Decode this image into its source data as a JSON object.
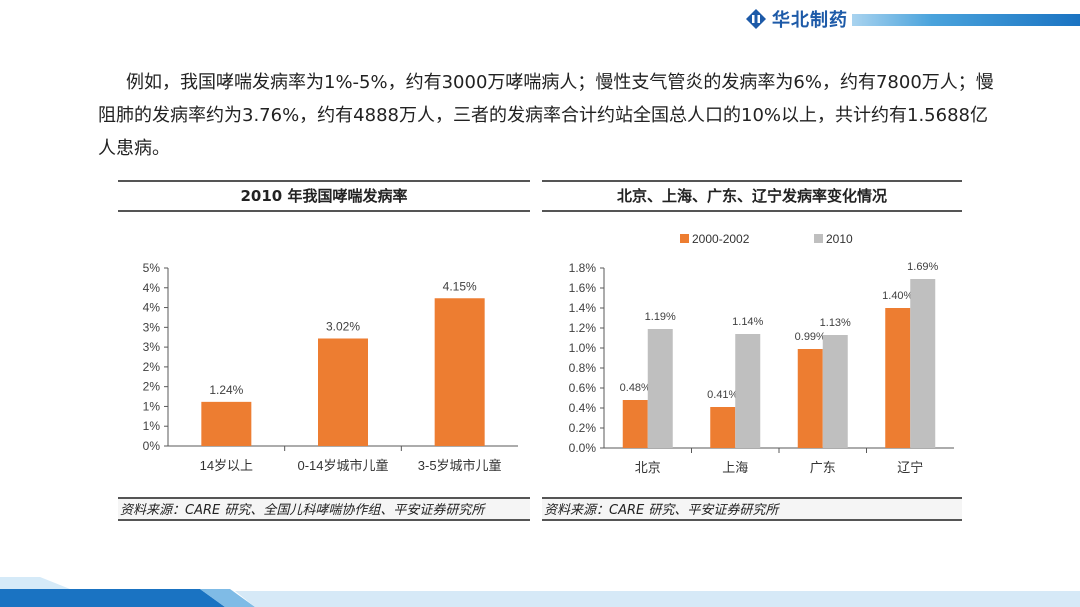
{
  "header": {
    "brand_name": "华北制药",
    "brand_color": "#1d5aa8"
  },
  "paragraph": "例如，我国哮喘发病率为1%-5%，约有3000万哮喘病人；慢性支气管炎的发病率为6%，约有7800万人；慢阻肺的发病率约为3.76%，约有4888万人，三者的发病率合计约站全国总人口的10%以上，共计约有1.5688亿人患病。",
  "panels": [
    {
      "title": "2010 年我国哮喘发病率",
      "source": "资料来源：CARE 研究、全国儿科哮喘协作组、平安证券研究所"
    },
    {
      "title": "北京、上海、广东、辽宁发病率变化情况",
      "source": "资料来源：CARE 研究、平安证券研究所"
    }
  ],
  "chart_data": [
    {
      "type": "bar",
      "categories": [
        "14岁以上",
        "0-14岁城市儿童",
        "3-5岁城市儿童"
      ],
      "values": [
        1.24,
        3.02,
        4.15
      ],
      "value_labels": [
        "1.24%",
        "3.02%",
        "4.15%"
      ],
      "ylim": [
        0,
        5
      ],
      "yticks": [
        "0%",
        "1%",
        "1%",
        "2%",
        "2%",
        "3%",
        "3%",
        "4%",
        "4%",
        "5%"
      ],
      "color": "#ed7d31",
      "grid": false,
      "legend": "none"
    },
    {
      "type": "bar",
      "categories": [
        "北京",
        "上海",
        "广东",
        "辽宁"
      ],
      "series": [
        {
          "name": "2000-2002",
          "values": [
            0.48,
            0.41,
            0.99,
            1.4
          ],
          "labels": [
            "0.48%",
            "0.41%",
            "0.99%",
            "1.40%"
          ],
          "color": "#ed7d31"
        },
        {
          "name": "2010",
          "values": [
            1.19,
            1.14,
            1.13,
            1.69
          ],
          "labels": [
            "1.19%",
            "1.14%",
            "1.13%",
            "1.69%"
          ],
          "color": "#bfbfbf"
        }
      ],
      "ylim": [
        0,
        1.8
      ],
      "yticks": [
        "0.0%",
        "0.2%",
        "0.4%",
        "0.6%",
        "0.8%",
        "1.0%",
        "1.2%",
        "1.4%",
        "1.6%",
        "1.8%"
      ],
      "grid": false,
      "legend": "top"
    }
  ]
}
